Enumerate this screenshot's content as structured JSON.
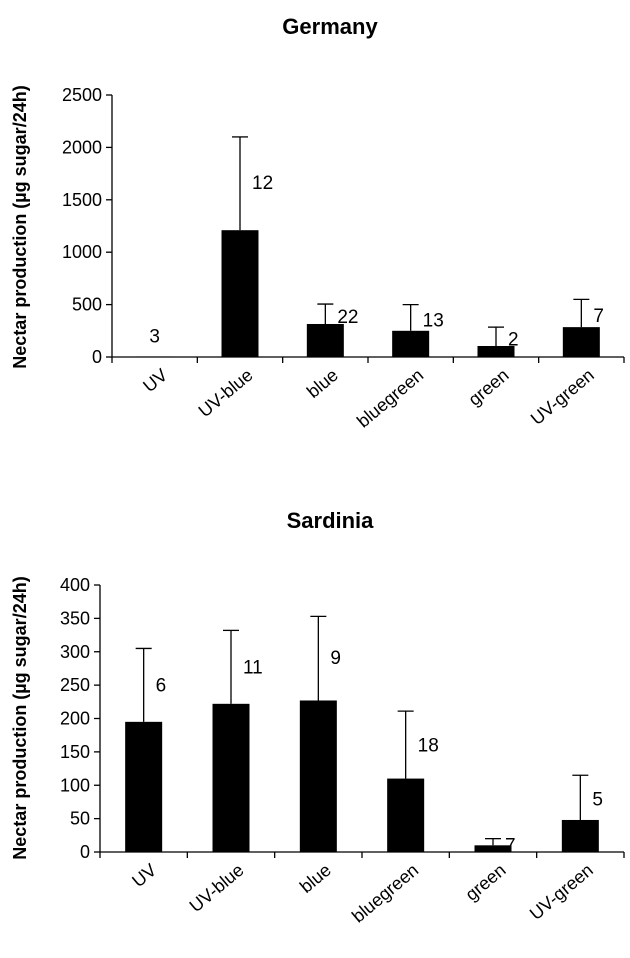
{
  "chart_data": [
    {
      "type": "bar",
      "title": "Germany",
      "ylabel": "Nectar production (µg sugar/24h)",
      "xlabel": "",
      "categories": [
        "UV",
        "UV-blue",
        "blue",
        "bluegreen",
        "green",
        "UV-green"
      ],
      "values": [
        5,
        1210,
        315,
        250,
        105,
        285
      ],
      "error_upper": [
        0,
        2100,
        505,
        500,
        285,
        550
      ],
      "n_labels": [
        "3",
        "12",
        "22",
        "13",
        "2",
        "7"
      ],
      "ylim": [
        0,
        2500
      ],
      "yticks": [
        0,
        500,
        1000,
        1500,
        2000,
        2500
      ],
      "grid": false,
      "legend": "none"
    },
    {
      "type": "bar",
      "title": "Sardinia",
      "ylabel": "Nectar production (µg sugar/24h)",
      "xlabel": "",
      "categories": [
        "UV",
        "UV-blue",
        "blue",
        "bluegreen",
        "green",
        "UV-green"
      ],
      "values": [
        195,
        222,
        227,
        110,
        10,
        48
      ],
      "error_upper": [
        305,
        332,
        353,
        211,
        20,
        115
      ],
      "n_labels": [
        "6",
        "11",
        "9",
        "18",
        "7",
        "5"
      ],
      "ylim": [
        0,
        400
      ],
      "yticks": [
        0,
        50,
        100,
        150,
        200,
        250,
        300,
        350,
        400
      ],
      "grid": false,
      "legend": "none"
    }
  ]
}
